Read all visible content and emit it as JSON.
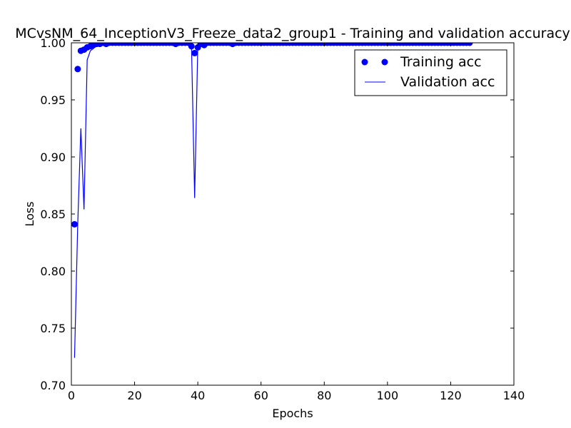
{
  "chart_data": {
    "type": "line",
    "title": "MCvsNM_64_InceptionV3_Freeze_data2_group1 - Training and validation accuracy",
    "xlabel": "Epochs",
    "ylabel": "Loss",
    "xlim": [
      0,
      140
    ],
    "ylim": [
      0.7,
      1.0
    ],
    "xticks": [
      0,
      20,
      40,
      60,
      80,
      100,
      120,
      140
    ],
    "yticks": [
      0.7,
      0.75,
      0.8,
      0.85,
      0.9,
      0.95,
      1.0
    ],
    "xtick_labels": [
      "0",
      "20",
      "40",
      "60",
      "80",
      "100",
      "120",
      "140"
    ],
    "ytick_labels": [
      "0.70",
      "0.75",
      "0.80",
      "0.85",
      "0.90",
      "0.95",
      "1.00"
    ],
    "grid": false,
    "legend_position": "top-right",
    "colors": {
      "series": "#0000ff",
      "axes": "#000000",
      "background": "#ffffff"
    },
    "series": [
      {
        "name": "Training acc",
        "style": "markers",
        "x": [
          1,
          2,
          3,
          4,
          5,
          6,
          7,
          8,
          9,
          10,
          11,
          12,
          13,
          14,
          15,
          16,
          17,
          18,
          19,
          20,
          21,
          22,
          23,
          24,
          25,
          26,
          27,
          28,
          29,
          30,
          31,
          32,
          33,
          34,
          35,
          36,
          37,
          38,
          39,
          40,
          41,
          42,
          43,
          44,
          45,
          46,
          47,
          48,
          49,
          50,
          51,
          52,
          53,
          54,
          55,
          56,
          57,
          58,
          59,
          60,
          61,
          62,
          63,
          64,
          65,
          66,
          67,
          68,
          69,
          70,
          71,
          72,
          73,
          74,
          75,
          76,
          77,
          78,
          79,
          80,
          81,
          82,
          83,
          84,
          85,
          86,
          87,
          88,
          89,
          90,
          91,
          92,
          93,
          94,
          95,
          96,
          97,
          98,
          99,
          100,
          101,
          102,
          103,
          104,
          105,
          106,
          107,
          108,
          109,
          110,
          111,
          112,
          113,
          114,
          115,
          116,
          117,
          118,
          119,
          120,
          121,
          122,
          123,
          124,
          125,
          126
        ],
        "values": [
          0.841,
          0.977,
          0.993,
          0.994,
          0.996,
          0.997,
          0.998,
          0.999,
          0.999,
          1.0,
          0.999,
          1.0,
          1.0,
          1.0,
          1.0,
          1.0,
          1.0,
          1.0,
          1.0,
          1.0,
          1.0,
          1.0,
          1.0,
          1.0,
          1.0,
          1.0,
          1.0,
          1.0,
          1.0,
          1.0,
          1.0,
          1.0,
          0.999,
          1.0,
          1.0,
          1.0,
          1.0,
          0.997,
          0.991,
          0.996,
          0.999,
          0.998,
          1.0,
          1.0,
          1.0,
          1.0,
          1.0,
          1.0,
          1.0,
          1.0,
          0.999,
          1.0,
          1.0,
          1.0,
          1.0,
          1.0,
          1.0,
          1.0,
          1.0,
          1.0,
          1.0,
          1.0,
          1.0,
          1.0,
          1.0,
          1.0,
          1.0,
          1.0,
          1.0,
          1.0,
          1.0,
          1.0,
          1.0,
          1.0,
          1.0,
          1.0,
          1.0,
          1.0,
          1.0,
          1.0,
          1.0,
          1.0,
          1.0,
          1.0,
          1.0,
          1.0,
          1.0,
          1.0,
          1.0,
          1.0,
          1.0,
          1.0,
          1.0,
          1.0,
          1.0,
          1.0,
          1.0,
          1.0,
          1.0,
          1.0,
          1.0,
          1.0,
          1.0,
          1.0,
          1.0,
          1.0,
          1.0,
          1.0,
          1.0,
          1.0,
          1.0,
          1.0,
          1.0,
          1.0,
          1.0,
          1.0,
          1.0,
          1.0,
          1.0,
          1.0,
          1.0,
          1.0,
          1.0,
          1.0,
          1.0,
          1.0
        ]
      },
      {
        "name": "Validation acc",
        "style": "line",
        "x": [
          1,
          2,
          3,
          4,
          5,
          6,
          7,
          8,
          9,
          10,
          11,
          12,
          13,
          14,
          15,
          16,
          17,
          18,
          19,
          20,
          21,
          22,
          23,
          24,
          25,
          26,
          27,
          28,
          29,
          30,
          31,
          32,
          33,
          34,
          35,
          36,
          37,
          38,
          39,
          40,
          41,
          42,
          43,
          44,
          45,
          46,
          47,
          48,
          49,
          50,
          51,
          52,
          53,
          54,
          55,
          56,
          57,
          58,
          59,
          60,
          61,
          62,
          63,
          64,
          65,
          66,
          67,
          68,
          69,
          70,
          71,
          72,
          73,
          74,
          75,
          76,
          77,
          78,
          79,
          80,
          81,
          82,
          83,
          84,
          85,
          86,
          87,
          88,
          89,
          90,
          91,
          92,
          93,
          94,
          95,
          96,
          97,
          98,
          99,
          100,
          101,
          102,
          103,
          104,
          105,
          106,
          107,
          108,
          109,
          110,
          111,
          112,
          113,
          114,
          115,
          116,
          117,
          118,
          119,
          120,
          121,
          122,
          123,
          124,
          125,
          126
        ],
        "values": [
          0.724,
          0.84,
          0.925,
          0.854,
          0.985,
          0.993,
          0.995,
          0.999,
          0.999,
          1.0,
          1.0,
          1.0,
          1.0,
          1.0,
          1.0,
          1.0,
          1.0,
          1.0,
          1.0,
          1.0,
          1.0,
          1.0,
          1.0,
          1.0,
          1.0,
          1.0,
          1.0,
          1.0,
          1.0,
          1.0,
          1.0,
          1.0,
          1.0,
          1.0,
          1.0,
          1.0,
          1.0,
          0.998,
          0.864,
          0.998,
          1.0,
          0.999,
          1.0,
          1.0,
          1.0,
          1.0,
          1.0,
          1.0,
          1.0,
          1.0,
          1.0,
          1.0,
          1.0,
          1.0,
          1.0,
          1.0,
          1.0,
          1.0,
          1.0,
          1.0,
          1.0,
          1.0,
          1.0,
          1.0,
          1.0,
          1.0,
          1.0,
          1.0,
          1.0,
          1.0,
          1.0,
          1.0,
          1.0,
          1.0,
          1.0,
          1.0,
          1.0,
          1.0,
          1.0,
          1.0,
          1.0,
          1.0,
          1.0,
          1.0,
          1.0,
          1.0,
          1.0,
          1.0,
          1.0,
          1.0,
          1.0,
          1.0,
          1.0,
          1.0,
          1.0,
          1.0,
          1.0,
          1.0,
          1.0,
          1.0,
          1.0,
          1.0,
          1.0,
          1.0,
          1.0,
          1.0,
          1.0,
          1.0,
          1.0,
          1.0,
          1.0,
          1.0,
          1.0,
          1.0,
          1.0,
          1.0,
          1.0,
          1.0,
          1.0,
          1.0,
          1.0,
          1.0,
          1.0,
          1.0,
          1.0,
          1.0
        ]
      }
    ]
  }
}
